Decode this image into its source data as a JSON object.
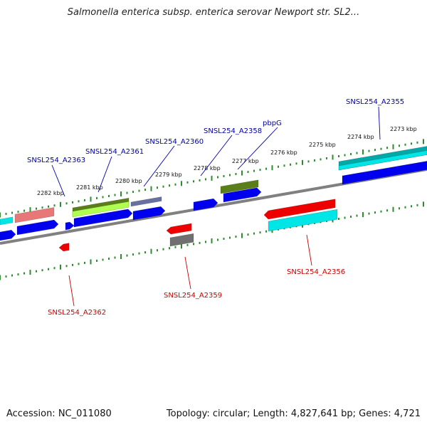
{
  "title": "Salmonella enterica subsp. enterica serovar Newport str. SL2...",
  "footer": {
    "accession": "Accession: NC_011080",
    "stats": "Topology: circular; Length: 4,827,641 bp; Genes: 4,721"
  },
  "colors": {
    "backbone": "#808080",
    "tick": "#2e8b2e",
    "forward_cds": "#0000ee",
    "reverse_cds": "#ee0000",
    "forward_label": "#0000aa",
    "reverse_label": "#cc0000",
    "olive": "#5a7f1a",
    "cyan": "#00e5e5",
    "teal": "#00a8a8",
    "pink": "#e87878",
    "lime": "#b0ff50",
    "slate": "#6870a0",
    "gray": "#707070"
  },
  "ruler": {
    "labels": [
      "2273 kbp",
      "2274 kbp",
      "2275 kbp",
      "2276 kbp",
      "2277 kbp",
      "2278 kbp",
      "2279 kbp",
      "2280 kbp",
      "2281 kbp",
      "2282 kbp"
    ]
  },
  "gene_labels": {
    "forward": [
      "SNSL254_A2355",
      "pbpG",
      "SNSL254_A2358",
      "SNSL254_A2360",
      "SNSL254_A2361",
      "SNSL254_A2363"
    ],
    "reverse": [
      "SNSL254_A2356",
      "SNSL254_A2359",
      "SNSL254_A2362"
    ]
  }
}
